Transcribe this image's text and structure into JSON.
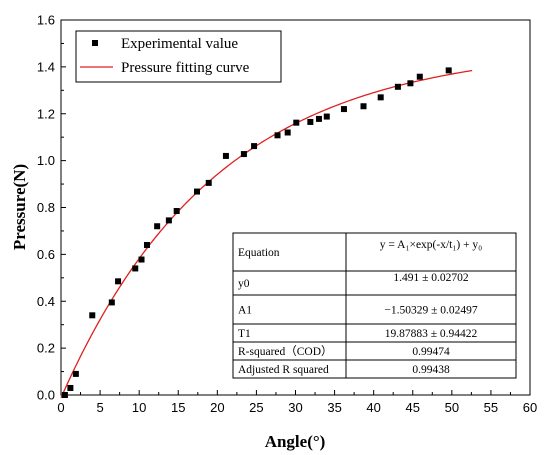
{
  "chart_data": {
    "type": "scatter",
    "xlabel": "Angle(°)",
    "ylabel": "Pressure(N)",
    "xlim": [
      0,
      60
    ],
    "ylim": [
      0.0,
      1.6
    ],
    "xticks": [
      "0",
      "5",
      "10",
      "15",
      "20",
      "25",
      "30",
      "35",
      "40",
      "45",
      "50",
      "55",
      "60"
    ],
    "yticks": [
      "0.0",
      "0.2",
      "0.4",
      "0.6",
      "0.8",
      "1.0",
      "1.2",
      "1.4",
      "1.6"
    ],
    "grid": false,
    "legend_position": "top-left",
    "series": [
      {
        "name": "Experimental value",
        "kind": "scatter",
        "color": "#000000",
        "points": [
          [
            0.5,
            0.0
          ],
          [
            1.2,
            0.03
          ],
          [
            1.9,
            0.09
          ],
          [
            4.0,
            0.34
          ],
          [
            6.5,
            0.395
          ],
          [
            7.3,
            0.485
          ],
          [
            9.5,
            0.54
          ],
          [
            10.3,
            0.578
          ],
          [
            11.0,
            0.64
          ],
          [
            12.3,
            0.72
          ],
          [
            13.8,
            0.745
          ],
          [
            14.8,
            0.785
          ],
          [
            17.4,
            0.868
          ],
          [
            18.9,
            0.905
          ],
          [
            21.1,
            1.02
          ],
          [
            23.4,
            1.028
          ],
          [
            24.7,
            1.062
          ],
          [
            27.7,
            1.108
          ],
          [
            29.0,
            1.12
          ],
          [
            30.1,
            1.162
          ],
          [
            31.9,
            1.165
          ],
          [
            33.0,
            1.178
          ],
          [
            34.0,
            1.188
          ],
          [
            36.2,
            1.22
          ],
          [
            38.7,
            1.232
          ],
          [
            40.9,
            1.27
          ],
          [
            43.1,
            1.315
          ],
          [
            44.7,
            1.33
          ],
          [
            45.9,
            1.358
          ],
          [
            49.6,
            1.385
          ]
        ]
      },
      {
        "name": "Pressure fitting curve",
        "kind": "line",
        "color": "#e02020",
        "x_range": [
          0,
          52.6
        ],
        "model": {
          "A1": -1.50329,
          "t1": 19.87883,
          "y0": 1.491
        }
      }
    ],
    "results_table": {
      "rows": [
        [
          "Equation",
          "y = A₁×exp(-x/t₁) + y₀"
        ],
        [
          "y0",
          "1.491 ± 0.02702"
        ],
        [
          "A1",
          "−1.50329 ± 0.02497"
        ],
        [
          "T1",
          "19.87883 ± 0.94422"
        ],
        [
          "R-squared（COD）",
          "0.99474"
        ],
        [
          "Adjusted R squared",
          "0.99438"
        ]
      ]
    }
  }
}
